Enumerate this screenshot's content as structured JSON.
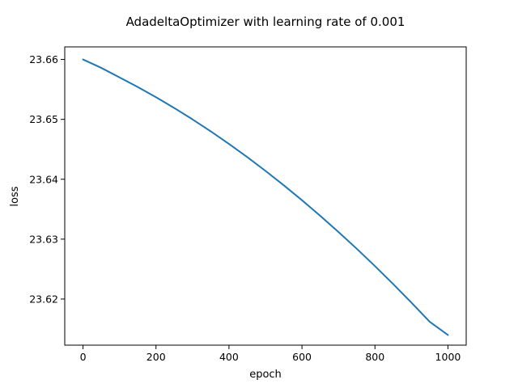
{
  "chart_data": {
    "type": "line",
    "title": "AdadeltaOptimizer with learning rate of 0.001",
    "xlabel": "epoch",
    "ylabel": "loss",
    "xlim": [
      -50,
      1050
    ],
    "ylim": [
      23.6123,
      23.6621
    ],
    "x_ticks": [
      0,
      200,
      400,
      600,
      800,
      1000
    ],
    "y_ticks": [
      23.62,
      23.63,
      23.64,
      23.65,
      23.66
    ],
    "y_tick_labels": [
      "23.62",
      "23.63",
      "23.64",
      "23.65",
      "23.66"
    ],
    "grid": false,
    "series": [
      {
        "color": "#1f77b4",
        "x": [
          0,
          50,
          100,
          150,
          200,
          250,
          300,
          350,
          400,
          450,
          500,
          550,
          600,
          650,
          700,
          750,
          800,
          850,
          900,
          950,
          1000
        ],
        "y": [
          23.66,
          23.6586,
          23.657,
          23.6554,
          23.6537,
          23.6519,
          23.65,
          23.648,
          23.6459,
          23.6437,
          23.6414,
          23.639,
          23.6365,
          23.6339,
          23.6312,
          23.6284,
          23.6255,
          23.6225,
          23.6194,
          23.6162,
          23.614
        ]
      }
    ]
  }
}
